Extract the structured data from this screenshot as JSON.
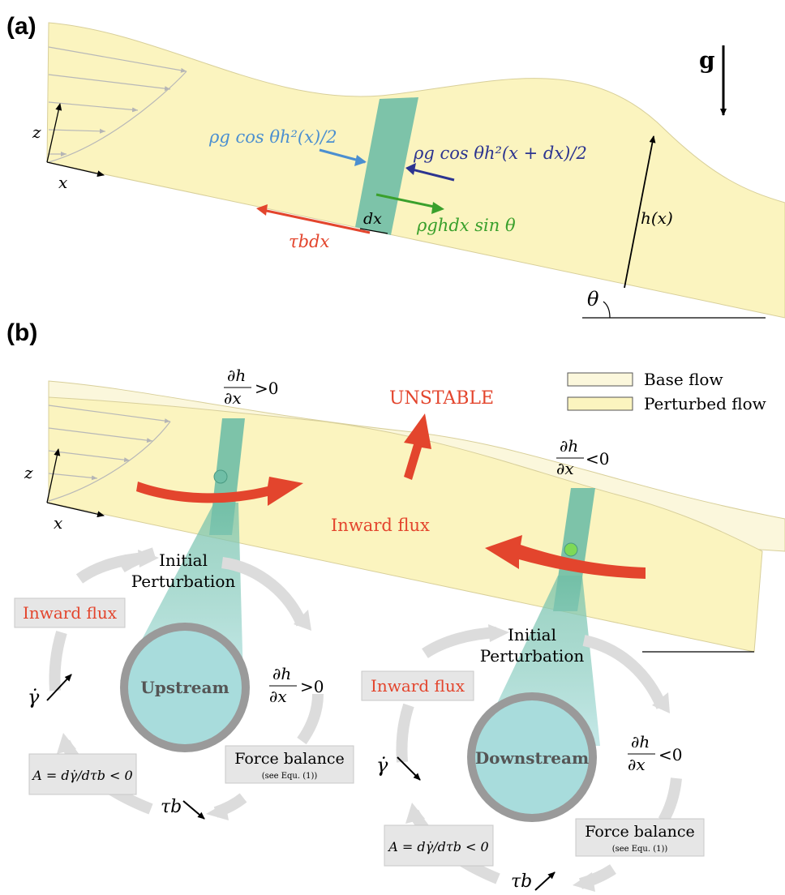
{
  "panel_a": {
    "tag": "(a)",
    "gravity_label": "g",
    "axis_z": "z",
    "axis_x": "x",
    "pressure_upstream": "ρg cos θh²(x)/2",
    "pressure_downstream": "ρg cos θh²(x + dx)/2",
    "gravity_force": "ρghdx sin θ",
    "shear_force": "τbdx",
    "slice_width": "dx",
    "height_label": "h(x)",
    "angle_label": "θ"
  },
  "panel_b": {
    "tag": "(b)",
    "legend": {
      "base": "Base flow",
      "perturbed": "Perturbed flow"
    },
    "unstable": "UNSTABLE",
    "inward_flux_center": "Inward flux",
    "axis_z": "z",
    "axis_x": "x",
    "dhdx_pos_top": "∂h/∂x>0",
    "dhdx_neg_top": "∂h/∂x<0",
    "cycle_up": {
      "title": "Upstream",
      "initial_1": "Initial",
      "initial_2": "Perturbation",
      "inward_flux": "Inward flux",
      "dhdx": "∂h/∂x>0",
      "force_balance": "Force balance",
      "see_eq": "(see Equ. (1))",
      "tau_b": "τb",
      "gamma_dot": "γ̇",
      "A_def": "A = dγ̇/dτb < 0"
    },
    "cycle_down": {
      "title": "Downstream",
      "initial_1": "Initial",
      "initial_2": "Perturbation",
      "inward_flux": "Inward flux",
      "dhdx": "∂h/∂x<0",
      "force_balance": "Force balance",
      "see_eq": "(see Equ. (1))",
      "tau_b": "τb",
      "gamma_dot": "γ̇",
      "A_def": "A = dγ̇/dτb < 0"
    }
  },
  "colors": {
    "fluid": "#fbf4bf",
    "fluid_base": "#fbf7dc",
    "slice": "#6fbea6",
    "red": "#e3452d",
    "light_blue": "#4b8fd0",
    "navy": "#2c3490",
    "green": "#3aa02c",
    "cycle_arrow": "#dcdcdc",
    "circle_fill": "#a8dcdc",
    "circle_ring": "#9a9a9a"
  }
}
